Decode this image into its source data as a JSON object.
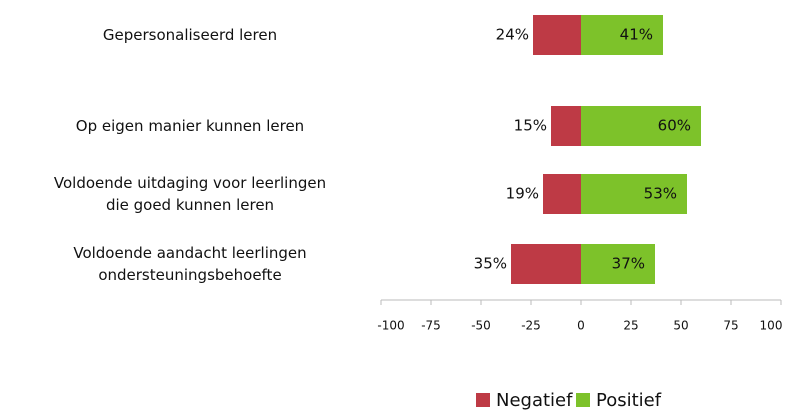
{
  "chart_data": {
    "type": "diverging_bar",
    "categories": [
      "Gepersonaliseerd leren",
      "Op eigen manier kunnen leren",
      "Voldoende uitdaging voor leerlingen\ndie goed kunnen leren",
      "Voldoende aandacht leerlingen\nondersteuningsbehoefte"
    ],
    "series": [
      {
        "name": "Negatief",
        "color": "#be3a45",
        "values": [
          -24,
          -15,
          -19,
          -35
        ],
        "value_labels": [
          "24%",
          "15%",
          "19%",
          "35%"
        ]
      },
      {
        "name": "Positief",
        "color": "#7dc22a",
        "values": [
          41,
          60,
          53,
          37
        ],
        "value_labels": [
          "41%",
          "60%",
          "53%",
          "37%"
        ]
      }
    ],
    "xlim": [
      -100,
      100
    ],
    "xticks": [
      -100,
      -75,
      -50,
      -25,
      0,
      25,
      50,
      75,
      100
    ],
    "legend": "bottom"
  }
}
